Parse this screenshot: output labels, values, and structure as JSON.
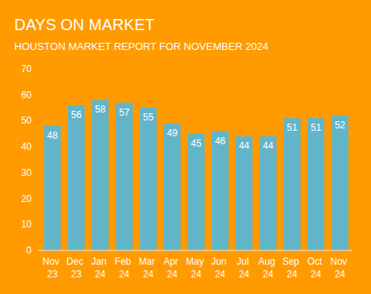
{
  "chart_data": {
    "type": "bar",
    "title": "DAYS ON MARKET",
    "subtitle": "HOUSTON MARKET REPORT FOR NOVEMBER 2024",
    "categories": [
      "Nov 23",
      "Dec 23",
      "Jan 24",
      "Feb 24",
      "Mar 24",
      "Apr 24",
      "May 24",
      "Jun 24",
      "Jul 24",
      "Aug 24",
      "Sep 24",
      "Oct 24",
      "Nov 24"
    ],
    "values": [
      48,
      56,
      58,
      57,
      55,
      49,
      45,
      46,
      44,
      44,
      51,
      51,
      52
    ],
    "color": "#62b5c9",
    "ylim": [
      0,
      70
    ],
    "yticks": [
      0,
      10,
      20,
      30,
      40,
      50,
      60,
      70
    ],
    "grid": false,
    "data_labels": true
  }
}
